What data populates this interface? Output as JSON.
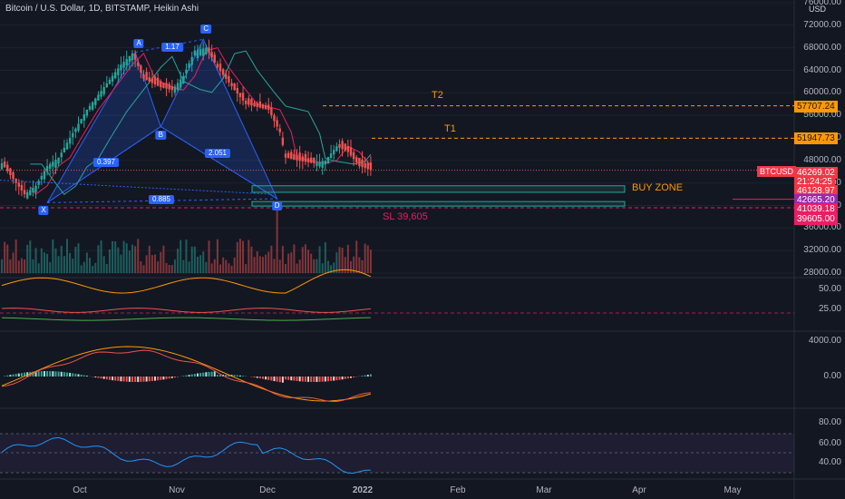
{
  "header": {
    "title": "Bitcoin / U.S. Dollar, 1D, BITSTAMP, Heikin Ashi",
    "unit": "USD"
  },
  "chart_data": {
    "type": "candlestick",
    "price_axis": {
      "ticks": [
        "76000.00",
        "72000.00",
        "68000.00",
        "64000.00",
        "60000.00",
        "56000.00",
        "52000.00",
        "48000.00",
        "44000.00",
        "40000.00",
        "36000.00",
        "32000.00",
        "28000.00"
      ],
      "ylim": [
        27500,
        76500
      ]
    },
    "x_ticks": [
      "Oct",
      "Nov",
      "Dec",
      "2022",
      "Feb",
      "Mar",
      "Apr",
      "May"
    ],
    "price_path": [
      [
        0,
        47500
      ],
      [
        5,
        44000
      ],
      [
        8,
        42000
      ],
      [
        12,
        43500
      ],
      [
        16,
        47000
      ],
      [
        20,
        48500
      ],
      [
        24,
        52000
      ],
      [
        30,
        57000
      ],
      [
        36,
        61000
      ],
      [
        42,
        65000
      ],
      [
        46,
        67000
      ],
      [
        50,
        62500
      ],
      [
        56,
        61000
      ],
      [
        60,
        60500
      ],
      [
        64,
        63000
      ],
      [
        68,
        67500
      ],
      [
        72,
        68000
      ],
      [
        76,
        64500
      ],
      [
        82,
        60500
      ],
      [
        86,
        58000
      ],
      [
        90,
        57500
      ],
      [
        94,
        57000
      ],
      [
        98,
        53000
      ],
      [
        100,
        48500
      ],
      [
        104,
        48000
      ],
      [
        110,
        47500
      ],
      [
        114,
        48000
      ],
      [
        118,
        50500
      ],
      [
        122,
        49500
      ],
      [
        126,
        47000
      ],
      [
        130,
        46300
      ]
    ],
    "fib_ratios": [
      "1.17",
      "0.397",
      "2.051",
      "0.885"
    ],
    "harmonic_points": [
      "X",
      "A",
      "B",
      "C",
      "D"
    ],
    "levels": [
      {
        "label": "T2",
        "price": "57707.24",
        "color": "#ff9800"
      },
      {
        "label": "T1",
        "price": "51947.73",
        "color": "#ff9800"
      },
      {
        "label": "BUY ZONE",
        "price": "42665.20",
        "color": "#ff9800"
      },
      {
        "label": "SL 39,605",
        "price": "39605.00",
        "color": "#e91e63"
      }
    ],
    "price_tags": [
      {
        "text": "46269.02",
        "bg": "#f23645",
        "color": "#ffffff"
      },
      {
        "text": "21:24:25",
        "bg": "#f23645",
        "color": "#ffffff"
      },
      {
        "text": "46128.97",
        "bg": "#f23645",
        "color": "#ffffff"
      },
      {
        "text": "42665.20",
        "bg": "#9c27b0",
        "color": "#ffffff"
      },
      {
        "text": "41039.18",
        "bg": "#e91e63",
        "color": "#ffffff"
      },
      {
        "text": "39605.00",
        "bg": "#e91e63",
        "color": "#ffffff"
      }
    ],
    "symbol_tag": "BTCUSD",
    "indicator1": {
      "ticks": [
        "50.00",
        "25.00"
      ]
    },
    "indicator2": {
      "ticks": [
        "4000.00",
        "0.00"
      ]
    },
    "indicator3": {
      "ticks": [
        "80.00",
        "60.00",
        "40.00"
      ]
    }
  },
  "colors": {
    "bg": "#131722",
    "up": "#26a69a",
    "down": "#ef5350",
    "fib": "#2962ff",
    "ma1": "#e91e63",
    "ma2": "#26a69a"
  }
}
